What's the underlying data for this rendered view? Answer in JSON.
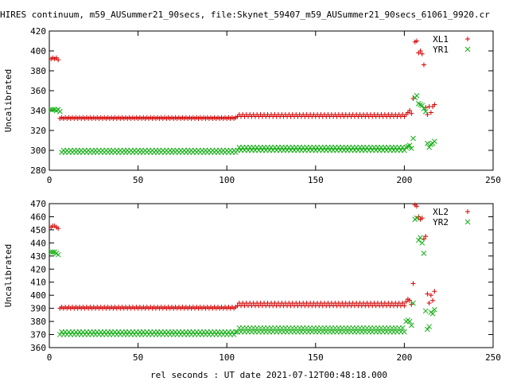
{
  "title": "HIRES continuum, m59_AUSummer21_90secs, file:Skynet_59407_m59_AUSummer21_90secs_61061_9920.cr",
  "xlabel": "rel seconds : UT date 2021-07-12T00:48:18.000",
  "colors": {
    "red": "#d40000",
    "green": "#18b018"
  },
  "chart_data": [
    {
      "type": "scatter",
      "ylabel": "Uncalibrated",
      "xlim": [
        0,
        250
      ],
      "ylim": [
        280,
        420
      ],
      "xticks": [
        0,
        50,
        100,
        150,
        200,
        250
      ],
      "yticks": [
        280,
        300,
        320,
        340,
        360,
        380,
        400,
        420
      ],
      "legend_position": "top-right",
      "series": [
        {
          "name": "XL1",
          "marker": "plus",
          "color": "#d40000",
          "points": [
            [
              1,
              392
            ],
            [
              2,
              393
            ],
            [
              3,
              392
            ],
            [
              4,
              393
            ],
            [
              5,
              391
            ]
          ],
          "runs": [
            {
              "x0": 6,
              "x1": 105,
              "step": 1,
              "y0": 332,
              "y1": 333
            },
            {
              "x0": 106,
              "x1": 200,
              "step": 1,
              "y0": 334,
              "y1": 336
            }
          ],
          "extra": [
            [
              201,
              336
            ],
            [
              202,
              338
            ],
            [
              203,
              340
            ],
            [
              204,
              337
            ],
            [
              205,
              352
            ],
            [
              206,
              409
            ],
            [
              207,
              410
            ],
            [
              208,
              398
            ],
            [
              209,
              400
            ],
            [
              210,
              397
            ],
            [
              211,
              386
            ],
            [
              212,
              343
            ],
            [
              213,
              336
            ],
            [
              214,
              344
            ],
            [
              215,
              338
            ],
            [
              216,
              344
            ],
            [
              217,
              346
            ]
          ]
        },
        {
          "name": "YR1",
          "marker": "cross",
          "color": "#18b018",
          "points": [
            [
              1,
              341
            ],
            [
              2,
              341
            ],
            [
              3,
              341
            ],
            [
              4,
              340
            ],
            [
              5,
              341
            ],
            [
              6,
              339
            ]
          ],
          "runs": [
            {
              "x0": 7,
              "x1": 105,
              "step": 1,
              "y0": 298,
              "y1": 300
            },
            {
              "x0": 106,
              "x1": 200,
              "step": 1,
              "y0": 300,
              "y1": 303
            }
          ],
          "extra": [
            [
              201,
              303
            ],
            [
              202,
              304
            ],
            [
              203,
              305
            ],
            [
              204,
              302
            ],
            [
              205,
              312
            ],
            [
              206,
              353
            ],
            [
              207,
              355
            ],
            [
              208,
              347
            ],
            [
              209,
              346
            ],
            [
              210,
              345
            ],
            [
              211,
              342
            ],
            [
              212,
              339
            ],
            [
              213,
              307
            ],
            [
              214,
              303
            ],
            [
              215,
              306
            ],
            [
              216,
              307
            ],
            [
              217,
              309
            ]
          ]
        }
      ]
    },
    {
      "type": "scatter",
      "ylabel": "Uncalibrated",
      "xlim": [
        0,
        250
      ],
      "ylim": [
        360,
        470
      ],
      "xticks": [
        0,
        50,
        100,
        150,
        200,
        250
      ],
      "yticks": [
        360,
        370,
        380,
        390,
        400,
        410,
        420,
        430,
        440,
        450,
        460,
        470
      ],
      "legend_position": "top-right",
      "series": [
        {
          "name": "XL2",
          "marker": "plus",
          "color": "#d40000",
          "points": [
            [
              1,
              452
            ],
            [
              2,
              453
            ],
            [
              3,
              453
            ],
            [
              4,
              452
            ],
            [
              5,
              451
            ]
          ],
          "runs": [
            {
              "x0": 6,
              "x1": 105,
              "step": 1,
              "y0": 390,
              "y1": 391
            },
            {
              "x0": 106,
              "x1": 200,
              "step": 1,
              "y0": 392,
              "y1": 394
            }
          ],
          "extra": [
            [
              201,
              395
            ],
            [
              202,
              397
            ],
            [
              203,
              396
            ],
            [
              204,
              393
            ],
            [
              205,
              409
            ],
            [
              206,
              469
            ],
            [
              207,
              468
            ],
            [
              208,
              460
            ],
            [
              209,
              458
            ],
            [
              210,
              459
            ],
            [
              211,
              443
            ],
            [
              212,
              445
            ],
            [
              213,
              401
            ],
            [
              214,
              394
            ],
            [
              215,
              400
            ],
            [
              216,
              396
            ],
            [
              217,
              403
            ]
          ]
        },
        {
          "name": "YR2",
          "marker": "cross",
          "color": "#18b018",
          "points": [
            [
              1,
              433
            ],
            [
              2,
              433
            ],
            [
              3,
              433
            ],
            [
              4,
              432
            ],
            [
              5,
              431
            ]
          ],
          "runs": [
            {
              "x0": 6,
              "x1": 105,
              "step": 1,
              "y0": 370,
              "y1": 372
            },
            {
              "x0": 106,
              "x1": 200,
              "step": 1,
              "y0": 372,
              "y1": 375
            }
          ],
          "extra": [
            [
              201,
              380
            ],
            [
              202,
              381
            ],
            [
              203,
              380
            ],
            [
              204,
              377
            ],
            [
              205,
              394
            ],
            [
              206,
              458
            ],
            [
              207,
              459
            ],
            [
              208,
              442
            ],
            [
              209,
              444
            ],
            [
              210,
              440
            ],
            [
              211,
              432
            ],
            [
              212,
              388
            ],
            [
              213,
              374
            ],
            [
              214,
              376
            ],
            [
              215,
              387
            ],
            [
              216,
              386
            ],
            [
              217,
              389
            ]
          ]
        }
      ]
    }
  ]
}
